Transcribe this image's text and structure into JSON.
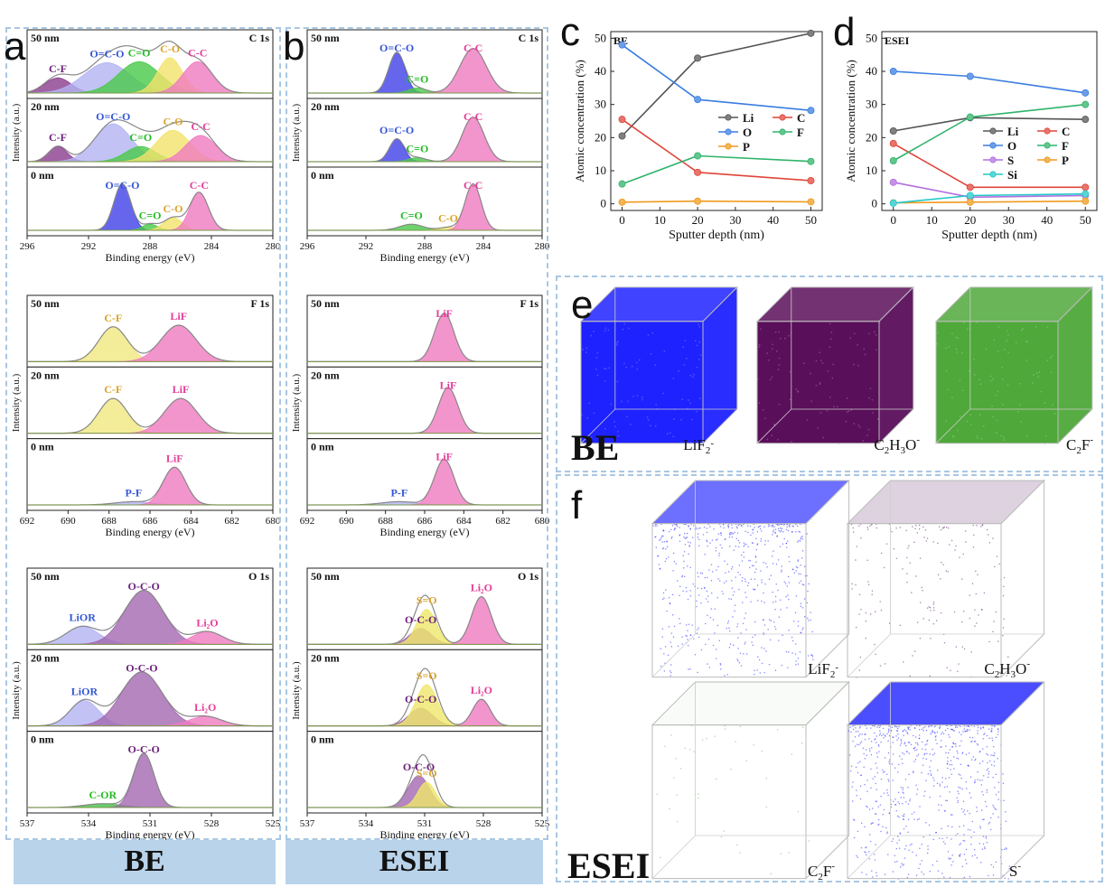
{
  "colors": {
    "cc": "#4040e8",
    "ccFill": "#8f8ff0",
    "cco": "#b3b3f3",
    "co": "#f2e26a",
    "coFill": "#f0e77f",
    "ce": "#49c949",
    "cf": "#d7b7f0",
    "pinkLine": "#e84fa9",
    "pink": "#f07ac0",
    "purple": "#8b3c8e",
    "purpleFill": "#a368b0",
    "green": "#45c245",
    "yellow": "#efe76a",
    "blue": "#4b6bd8",
    "blueLbl": "#3355d6",
    "lblC": "#6b1f7a",
    "lblGreen": "#22bb22",
    "lblYellow": "#d9a32a",
    "lblPink": "#e43c99",
    "grey": "#999999"
  },
  "panels": {
    "a": "a",
    "b": "b",
    "c": "c",
    "d": "d",
    "e": "e",
    "f": "f"
  },
  "footers": {
    "be": "BE",
    "esei": "ESEI"
  },
  "chart_data": [
    {
      "id": "a-C1s",
      "type": "area",
      "panel": "a",
      "group": "BE",
      "element": "C 1s",
      "xlabel": "Binding energy (eV)",
      "ylabel": "Intensity (a.u.)",
      "xlim": [
        296,
        280
      ],
      "xticks": [
        296,
        292,
        288,
        284,
        280
      ],
      "layers": [
        {
          "depth": "50 nm",
          "peaks": [
            {
              "label": "C-F",
              "center": 294.0,
              "height": 0.3,
              "width": 0.85,
              "color": "purple",
              "lbl": "lblC"
            },
            {
              "label": "O=C-O",
              "center": 290.8,
              "height": 0.6,
              "width": 1.5,
              "color": "cco",
              "lbl": "blueLbl"
            },
            {
              "label": "C=O",
              "center": 288.7,
              "height": 0.62,
              "width": 1.35,
              "color": "ce",
              "lbl": "lblGreen"
            },
            {
              "label": "C-O",
              "center": 286.7,
              "height": 0.7,
              "width": 0.8,
              "color": "co",
              "lbl": "lblYellow"
            },
            {
              "label": "C-C",
              "center": 284.9,
              "height": 0.62,
              "width": 0.95,
              "color": "pink",
              "lbl": "lblPink"
            }
          ]
        },
        {
          "depth": "20 nm",
          "peaks": [
            {
              "label": "C-F",
              "center": 294.0,
              "height": 0.3,
              "width": 0.6,
              "color": "purple",
              "lbl": "lblC"
            },
            {
              "label": "O=C-O",
              "center": 290.4,
              "height": 0.75,
              "width": 1.2,
              "color": "cco",
              "lbl": "blueLbl"
            },
            {
              "label": "C=O",
              "center": 288.6,
              "height": 0.3,
              "width": 1.0,
              "color": "ce",
              "lbl": "lblGreen"
            },
            {
              "label": "C-O",
              "center": 286.5,
              "height": 0.62,
              "width": 1.1,
              "color": "co",
              "lbl": "lblYellow"
            },
            {
              "label": "C-C",
              "center": 284.7,
              "height": 0.52,
              "width": 1.0,
              "color": "pink",
              "lbl": "lblPink"
            }
          ]
        },
        {
          "depth": "0 nm",
          "peaks": [
            {
              "label": "O=C-O",
              "center": 289.8,
              "height": 0.92,
              "width": 0.55,
              "color": "cc",
              "lbl": "blueLbl"
            },
            {
              "label": "C=O",
              "center": 288.0,
              "height": 0.12,
              "width": 0.5,
              "color": "ce",
              "lbl": "lblGreen"
            },
            {
              "label": "C-O",
              "center": 286.5,
              "height": 0.25,
              "width": 0.6,
              "color": "co",
              "lbl": "lblYellow"
            },
            {
              "label": "C-C",
              "center": 284.8,
              "height": 0.75,
              "width": 0.6,
              "color": "pink",
              "lbl": "lblPink"
            }
          ]
        }
      ]
    },
    {
      "id": "b-C1s",
      "type": "area",
      "panel": "b",
      "group": "ESEI",
      "element": "C 1s",
      "xlabel": "Binding energy (eV)",
      "ylabel": "Intensity (a.u.)",
      "xlim": [
        296,
        280
      ],
      "xticks": [
        296,
        292,
        288,
        284,
        280
      ],
      "layers": [
        {
          "depth": "50 nm",
          "peaks": [
            {
              "label": "O=C-O",
              "center": 289.9,
              "height": 0.8,
              "width": 0.55,
              "color": "cc",
              "lbl": "blueLbl"
            },
            {
              "label": "C=O",
              "center": 288.5,
              "height": 0.1,
              "width": 0.6,
              "color": "ce",
              "lbl": "lblGreen"
            },
            {
              "label": "C-C",
              "center": 284.7,
              "height": 0.88,
              "width": 0.9,
              "color": "pink",
              "lbl": "lblPink"
            }
          ]
        },
        {
          "depth": "20 nm",
          "peaks": [
            {
              "label": "O=C-O",
              "center": 289.9,
              "height": 0.45,
              "width": 0.5,
              "color": "cc",
              "lbl": "blueLbl"
            },
            {
              "label": "C=O",
              "center": 288.5,
              "height": 0.08,
              "width": 0.6,
              "color": "ce",
              "lbl": "lblGreen"
            },
            {
              "label": "C-C",
              "center": 284.7,
              "height": 0.88,
              "width": 0.75,
              "color": "pink",
              "lbl": "lblPink"
            }
          ]
        },
        {
          "depth": "0 nm",
          "peaks": [
            {
              "label": "C=O",
              "center": 288.9,
              "height": 0.12,
              "width": 0.8,
              "color": "ce",
              "lbl": "lblGreen"
            },
            {
              "label": "C-O",
              "center": 286.4,
              "height": 0.06,
              "width": 0.6,
              "color": "co",
              "lbl": "lblYellow"
            },
            {
              "label": "C-C",
              "center": 284.7,
              "height": 0.92,
              "width": 0.55,
              "color": "pink",
              "lbl": "lblPink"
            }
          ]
        }
      ]
    },
    {
      "id": "a-F1s",
      "type": "area",
      "panel": "a",
      "group": "BE",
      "element": "F 1s",
      "xlabel": "Binding energy (eV)",
      "ylabel": "Intensity (a.u.)",
      "xlim": [
        692,
        680
      ],
      "xticks": [
        692,
        690,
        688,
        686,
        684,
        682,
        680
      ],
      "layers": [
        {
          "depth": "50 nm",
          "peaks": [
            {
              "label": "C-F",
              "center": 687.8,
              "height": 0.65,
              "width": 0.7,
              "color": "coFill",
              "lbl": "lblYellow"
            },
            {
              "label": "LiF",
              "center": 684.6,
              "height": 0.68,
              "width": 0.85,
              "color": "pink",
              "lbl": "lblPink"
            }
          ]
        },
        {
          "depth": "20 nm",
          "peaks": [
            {
              "label": "C-F",
              "center": 687.8,
              "height": 0.65,
              "width": 0.7,
              "color": "coFill",
              "lbl": "lblYellow"
            },
            {
              "label": "LiF",
              "center": 684.5,
              "height": 0.65,
              "width": 0.8,
              "color": "pink",
              "lbl": "lblPink"
            }
          ]
        },
        {
          "depth": "0 nm",
          "peaks": [
            {
              "label": "P-F",
              "center": 686.8,
              "height": 0.06,
              "width": 0.9,
              "color": "cco",
              "lbl": "blueLbl"
            },
            {
              "label": "LiF",
              "center": 684.8,
              "height": 0.7,
              "width": 0.55,
              "color": "pink",
              "lbl": "lblPink"
            }
          ]
        }
      ]
    },
    {
      "id": "b-F1s",
      "type": "area",
      "panel": "b",
      "group": "ESEI",
      "element": "F 1s",
      "xlabel": "Binding energy (eV)",
      "ylabel": "Intensity (a.u.)",
      "xlim": [
        692,
        680
      ],
      "xticks": [
        692,
        690,
        688,
        686,
        684,
        682,
        680
      ],
      "layers": [
        {
          "depth": "50 nm",
          "peaks": [
            {
              "label": "LiF",
              "center": 685.0,
              "height": 0.9,
              "width": 0.5,
              "color": "pink",
              "lbl": "lblPink"
            }
          ]
        },
        {
          "depth": "20 nm",
          "peaks": [
            {
              "label": "LiF",
              "center": 684.8,
              "height": 0.85,
              "width": 0.5,
              "color": "pink",
              "lbl": "lblPink"
            }
          ]
        },
        {
          "depth": "0 nm",
          "peaks": [
            {
              "label": "P-F",
              "center": 687.3,
              "height": 0.06,
              "width": 0.9,
              "color": "cco",
              "lbl": "blueLbl"
            },
            {
              "label": "LiF",
              "center": 685.0,
              "height": 0.85,
              "width": 0.5,
              "color": "pink",
              "lbl": "lblPink"
            }
          ]
        }
      ]
    },
    {
      "id": "a-O1s",
      "type": "area",
      "panel": "a",
      "group": "BE",
      "element": "O 1s",
      "xlabel": "Binding energy (eV)",
      "ylabel": "Intensity (a.u.)",
      "xlim": [
        537,
        525
      ],
      "xticks": [
        537,
        534,
        531,
        528,
        525
      ],
      "layers": [
        {
          "depth": "50 nm",
          "peaks": [
            {
              "label": "LiOR",
              "center": 534.3,
              "height": 0.28,
              "width": 0.8,
              "color": "cco",
              "lbl": "blueLbl"
            },
            {
              "label": "O-C-O",
              "center": 531.3,
              "height": 0.85,
              "width": 0.95,
              "color": "purpleFill",
              "lbl": "lblC"
            },
            {
              "label": "Li₂O",
              "center": 528.2,
              "height": 0.2,
              "width": 0.75,
              "color": "pink",
              "lbl": "lblPink"
            }
          ]
        },
        {
          "depth": "20 nm",
          "peaks": [
            {
              "label": "LiOR",
              "center": 534.2,
              "height": 0.4,
              "width": 0.7,
              "color": "cco",
              "lbl": "blueLbl"
            },
            {
              "label": "O-C-O",
              "center": 531.4,
              "height": 0.85,
              "width": 1.0,
              "color": "purpleFill",
              "lbl": "lblC"
            },
            {
              "label": "Li₂O",
              "center": 528.3,
              "height": 0.15,
              "width": 0.8,
              "color": "pink",
              "lbl": "lblPink"
            }
          ]
        },
        {
          "depth": "0 nm",
          "peaks": [
            {
              "label": "C-OR",
              "center": 533.3,
              "height": 0.06,
              "width": 0.9,
              "color": "green",
              "lbl": "lblGreen"
            },
            {
              "label": "O-C-O",
              "center": 531.3,
              "height": 0.85,
              "width": 0.5,
              "color": "purpleFill",
              "lbl": "lblC"
            }
          ]
        }
      ]
    },
    {
      "id": "b-O1s",
      "type": "area",
      "panel": "b",
      "group": "ESEI",
      "element": "O 1s",
      "xlabel": "Binding energy (eV)",
      "ylabel": "Intensity (a.u.)",
      "xlim": [
        537,
        525
      ],
      "xticks": [
        537,
        534,
        531,
        528,
        525
      ],
      "layers": [
        {
          "depth": "50 nm",
          "peaks": [
            {
              "label": "O-C-O",
              "center": 531.2,
              "height": 0.25,
              "width": 0.55,
              "color": "purpleFill",
              "lbl": "lblC"
            },
            {
              "label": "S=O",
              "center": 530.9,
              "height": 0.55,
              "width": 0.5,
              "color": "yellow",
              "lbl": "lblYellow"
            },
            {
              "label": "Li₂O",
              "center": 528.1,
              "height": 0.75,
              "width": 0.5,
              "color": "pink",
              "lbl": "lblPink"
            }
          ]
        },
        {
          "depth": "20 nm",
          "peaks": [
            {
              "label": "O-C-O",
              "center": 531.2,
              "height": 0.28,
              "width": 0.6,
              "color": "purpleFill",
              "lbl": "lblC"
            },
            {
              "label": "S=O",
              "center": 530.9,
              "height": 0.65,
              "width": 0.55,
              "color": "yellow",
              "lbl": "lblYellow"
            },
            {
              "label": "Li₂O",
              "center": 528.1,
              "height": 0.42,
              "width": 0.45,
              "color": "pink",
              "lbl": "lblPink"
            }
          ]
        },
        {
          "depth": "0 nm",
          "peaks": [
            {
              "label": "O-C-O",
              "center": 531.3,
              "height": 0.5,
              "width": 0.55,
              "color": "purpleFill",
              "lbl": "lblC"
            },
            {
              "label": "S=O",
              "center": 530.9,
              "height": 0.4,
              "width": 0.45,
              "color": "yellow",
              "lbl": "lblYellow"
            }
          ]
        }
      ]
    },
    {
      "id": "c",
      "type": "line",
      "panel": "c",
      "title": "BE",
      "xlabel": "Sputter depth (nm)",
      "ylabel": "Atomic concentration (%)",
      "xlim": [
        -3,
        53
      ],
      "ylim": [
        -2,
        52
      ],
      "xticks": [
        0,
        10,
        20,
        30,
        40,
        50
      ],
      "yticks": [
        0,
        10,
        20,
        30,
        40,
        50
      ],
      "x": [
        0,
        20,
        50
      ],
      "series": [
        {
          "name": "Li",
          "values": [
            20.5,
            44,
            51.5
          ],
          "color": "#555555"
        },
        {
          "name": "C",
          "values": [
            25.5,
            9.5,
            7
          ],
          "color": "#e0453a"
        },
        {
          "name": "O",
          "values": [
            48,
            31.5,
            28.2
          ],
          "color": "#3a7de0"
        },
        {
          "name": "F",
          "values": [
            6,
            14.5,
            12.8
          ],
          "color": "#2fb36a"
        },
        {
          "name": "P",
          "values": [
            0.5,
            0.8,
            0.6
          ],
          "color": "#f09a1e"
        }
      ],
      "legend": "center-right"
    },
    {
      "id": "d",
      "type": "line",
      "panel": "d",
      "title": "ESEI",
      "xlabel": "Sputter depth (nm)",
      "ylabel": "Atomic concentration (%)",
      "xlim": [
        -3,
        53
      ],
      "ylim": [
        -2,
        52
      ],
      "xticks": [
        0,
        10,
        20,
        30,
        40,
        50
      ],
      "yticks": [
        0,
        10,
        20,
        30,
        40,
        50
      ],
      "x": [
        0,
        20,
        50
      ],
      "series": [
        {
          "name": "Li",
          "values": [
            22,
            26,
            25.5
          ],
          "color": "#555555"
        },
        {
          "name": "C",
          "values": [
            18.2,
            5,
            5
          ],
          "color": "#e0453a"
        },
        {
          "name": "O",
          "values": [
            40,
            38.5,
            33.5
          ],
          "color": "#3a7de0"
        },
        {
          "name": "F",
          "values": [
            13,
            26.2,
            30
          ],
          "color": "#2fb36a"
        },
        {
          "name": "S",
          "values": [
            6.5,
            2,
            2.5
          ],
          "color": "#b26fe0"
        },
        {
          "name": "P",
          "values": [
            0.3,
            0.5,
            0.8
          ],
          "color": "#f09a1e"
        },
        {
          "name": "Si",
          "values": [
            0.2,
            2.5,
            3
          ],
          "color": "#22c7c7"
        }
      ],
      "legend": "center-right"
    }
  ],
  "tof": {
    "eLabel": "BE",
    "fLabel": "ESEI",
    "e": [
      {
        "name": "LiF2-",
        "base": "LiF",
        "sub": "2",
        "sup": "-",
        "color": "#1e22ff",
        "density": 1.0
      },
      {
        "name": "C2H3O-",
        "base": "C",
        "sub": "2",
        "mid": "H",
        "sub2": "3",
        "end": "O",
        "sup": "-",
        "color": "#5a0f5a",
        "density": 1.0
      },
      {
        "name": "C2F-",
        "base": "C",
        "sub": "2",
        "end": "F",
        "sup": "-",
        "color": "#4fa83a",
        "density": 1.0
      }
    ],
    "f": [
      {
        "name": "LiF2-",
        "base": "LiF",
        "sub": "2",
        "sup": "-",
        "color": "#1e22ff",
        "density": 0.65
      },
      {
        "name": "C2H3O-",
        "base": "C",
        "sub": "2",
        "mid": "H",
        "sub2": "3",
        "end": "O",
        "sup": "-",
        "color": "#5a1d6a",
        "density": 0.2
      },
      {
        "name": "C2F-",
        "base": "C",
        "sub": "2",
        "end": "F",
        "sup": "-",
        "color": "#6fae5a",
        "density": 0.05
      },
      {
        "name": "S-",
        "base": "S",
        "sup": "-",
        "color": "#1e22ff",
        "density": 0.8
      }
    ]
  }
}
